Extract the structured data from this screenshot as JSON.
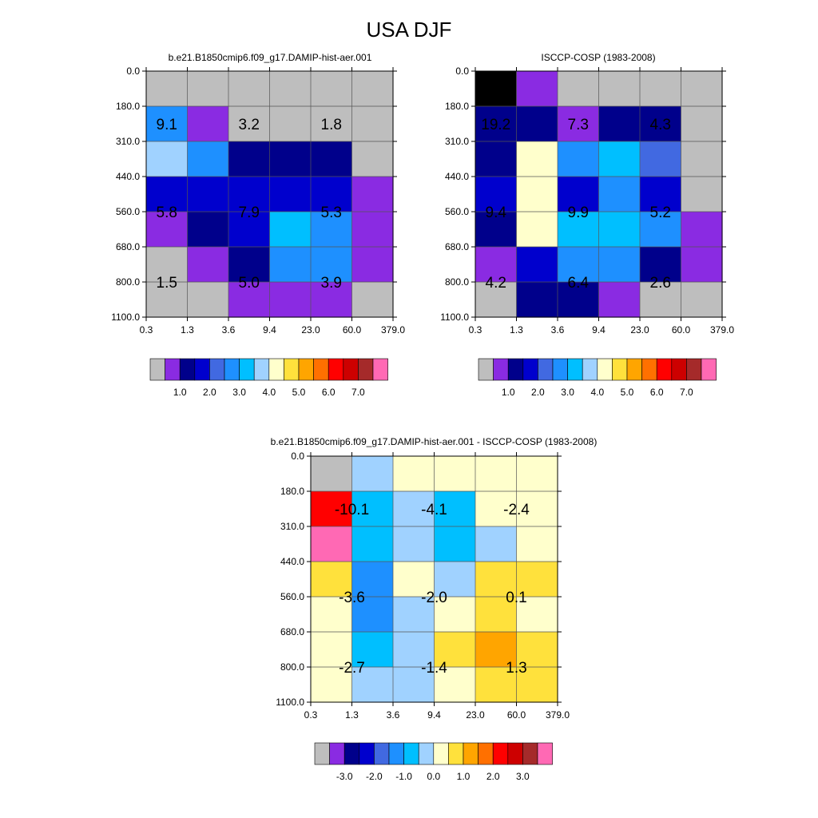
{
  "page": {
    "title": "USA DJF"
  },
  "chart_data": [
    {
      "type": "heatmap",
      "title": "b.e21.B1850cmip6.f09_g17.DAMIP-hist-aer.001",
      "x_ticks": [
        "0.3",
        "1.3",
        "3.6",
        "9.4",
        "23.0",
        "60.0",
        "379.0"
      ],
      "y_ticks": [
        "0.0",
        "180.0",
        "310.0",
        "440.0",
        "560.0",
        "680.0",
        "800.0",
        "1100.0"
      ],
      "colorbar_labels": [
        "1.0",
        "2.0",
        "3.0",
        "4.0",
        "5.0",
        "6.0",
        "7.0"
      ],
      "cells": [
        [
          0,
          0,
          0,
          0,
          0,
          0
        ],
        [
          5,
          1,
          0,
          0,
          0,
          0
        ],
        [
          7,
          5,
          2,
          2,
          2,
          0
        ],
        [
          3,
          3,
          3,
          3,
          3,
          1
        ],
        [
          1,
          2,
          3,
          6,
          5,
          1
        ],
        [
          0,
          1,
          2,
          5,
          5,
          1
        ],
        [
          0,
          0,
          1,
          1,
          1,
          0
        ]
      ],
      "annotations": [
        {
          "text": "9.1",
          "col": 0.5,
          "row": 1.5
        },
        {
          "text": "3.2",
          "col": 2.5,
          "row": 1.5
        },
        {
          "text": "1.8",
          "col": 4.5,
          "row": 1.5
        },
        {
          "text": "5.8",
          "col": 0.5,
          "row": 4.0
        },
        {
          "text": "7.9",
          "col": 2.5,
          "row": 4.0
        },
        {
          "text": "5.3",
          "col": 4.5,
          "row": 4.0
        },
        {
          "text": "1.5",
          "col": 0.5,
          "row": 6.0
        },
        {
          "text": "5.0",
          "col": 2.5,
          "row": 6.0
        },
        {
          "text": "3.9",
          "col": 4.5,
          "row": 6.0
        }
      ]
    },
    {
      "type": "heatmap",
      "title": "ISCCP-COSP (1983-2008)",
      "x_ticks": [
        "0.3",
        "1.3",
        "3.6",
        "9.4",
        "23.0",
        "60.0",
        "379.0"
      ],
      "y_ticks": [
        "0.0",
        "180.0",
        "310.0",
        "440.0",
        "560.0",
        "680.0",
        "800.0",
        "1100.0"
      ],
      "colorbar_labels": [
        "1.0",
        "2.0",
        "3.0",
        "4.0",
        "5.0",
        "6.0",
        "7.0"
      ],
      "cells": [
        [
          17,
          1,
          0,
          0,
          0,
          0
        ],
        [
          2,
          2,
          1,
          2,
          2,
          0
        ],
        [
          2,
          8,
          5,
          6,
          4,
          0
        ],
        [
          3,
          8,
          3,
          5,
          3,
          0
        ],
        [
          2,
          8,
          6,
          6,
          5,
          1
        ],
        [
          1,
          3,
          5,
          5,
          2,
          1
        ],
        [
          0,
          2,
          2,
          1,
          0,
          0
        ]
      ],
      "annotations": [
        {
          "text": "19.2",
          "col": 0.5,
          "row": 1.5
        },
        {
          "text": "7.3",
          "col": 2.5,
          "row": 1.5
        },
        {
          "text": "4.3",
          "col": 4.5,
          "row": 1.5
        },
        {
          "text": "9.4",
          "col": 0.5,
          "row": 4.0
        },
        {
          "text": "9.9",
          "col": 2.5,
          "row": 4.0
        },
        {
          "text": "5.2",
          "col": 4.5,
          "row": 4.0
        },
        {
          "text": "4.2",
          "col": 0.5,
          "row": 6.0
        },
        {
          "text": "6.4",
          "col": 2.5,
          "row": 6.0
        },
        {
          "text": "2.6",
          "col": 4.5,
          "row": 6.0
        }
      ]
    },
    {
      "type": "heatmap",
      "title": "b.e21.B1850cmip6.f09_g17.DAMIP-hist-aer.001 - ISCCP-COSP (1983-2008)",
      "x_ticks": [
        "0.3",
        "1.3",
        "3.6",
        "9.4",
        "23.0",
        "60.0",
        "379.0"
      ],
      "y_ticks": [
        "0.0",
        "180.0",
        "310.0",
        "440.0",
        "560.0",
        "680.0",
        "800.0",
        "1100.0"
      ],
      "colorbar_labels": [
        "-3.0",
        "-2.0",
        "-1.0",
        "0.0",
        "1.0",
        "2.0",
        "3.0"
      ],
      "cells": [
        [
          0,
          7,
          8,
          8,
          8,
          8
        ],
        [
          12,
          6,
          7,
          6,
          8,
          8
        ],
        [
          15,
          6,
          7,
          6,
          7,
          8
        ],
        [
          9,
          5,
          8,
          7,
          9,
          9
        ],
        [
          8,
          5,
          7,
          8,
          9,
          8
        ],
        [
          8,
          6,
          7,
          9,
          10,
          9
        ],
        [
          8,
          7,
          7,
          8,
          9,
          9
        ]
      ],
      "annotations": [
        {
          "text": "-10.1",
          "col": 1.0,
          "row": 1.5
        },
        {
          "text": "-4.1",
          "col": 3.0,
          "row": 1.5
        },
        {
          "text": "-2.4",
          "col": 5.0,
          "row": 1.5
        },
        {
          "text": "-3.6",
          "col": 1.0,
          "row": 4.0
        },
        {
          "text": "-2.0",
          "col": 3.0,
          "row": 4.0
        },
        {
          "text": "0.1",
          "col": 5.0,
          "row": 4.0
        },
        {
          "text": "-2.7",
          "col": 1.0,
          "row": 6.0
        },
        {
          "text": "-1.4",
          "col": 3.0,
          "row": 6.0
        },
        {
          "text": "1.3",
          "col": 5.0,
          "row": 6.0
        }
      ]
    }
  ],
  "colorbar": {
    "colors": [
      "#BEBEBE",
      "#8A2BE2",
      "#00008B",
      "#0000CD",
      "#4169E1",
      "#1E90FF",
      "#00BFFF",
      "#A0D2FF",
      "#FFFFCC",
      "#FFE13C",
      "#FFA500",
      "#FF7000",
      "#FF0000",
      "#CD0000",
      "#A52A2A",
      "#FF69B4"
    ]
  }
}
